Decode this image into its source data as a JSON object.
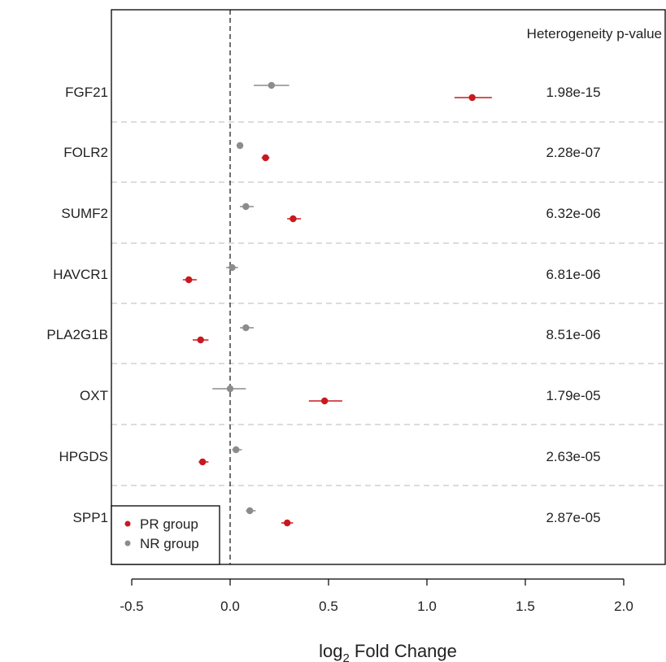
{
  "chart_data": {
    "type": "forest",
    "annotation_header": "Heterogeneity p-value",
    "xlabel_prefix": "log",
    "xlabel_subscript": "2",
    "xlabel_suffix": " Fold Change",
    "xlim": [
      -0.6,
      2.2
    ],
    "xticks": [
      -0.5,
      0.0,
      0.5,
      1.0,
      1.5,
      2.0
    ],
    "xtick_labels": [
      "-0.5",
      "0.0",
      "0.5",
      "1.0",
      "1.5",
      "2.0"
    ],
    "reference_line": 0,
    "genes": [
      "FGF21",
      "FOLR2",
      "SUMF2",
      "HAVCR1",
      "PLA2G1B",
      "OXT",
      "HPGDS",
      "SPP1"
    ],
    "p_values": [
      "1.98e-15",
      "2.28e-07",
      "6.32e-06",
      "6.81e-06",
      "8.51e-06",
      "1.79e-05",
      "2.63e-05",
      "2.87e-05"
    ],
    "series": [
      {
        "name": "PR group",
        "color": "#c8191e",
        "estimate": [
          1.23,
          0.18,
          0.32,
          -0.21,
          -0.15,
          0.48,
          -0.14,
          0.29
        ],
        "ci_low": [
          1.14,
          0.16,
          0.29,
          -0.24,
          -0.19,
          0.4,
          -0.16,
          0.26
        ],
        "ci_high": [
          1.33,
          0.2,
          0.36,
          -0.17,
          -0.11,
          0.57,
          -0.11,
          0.32
        ]
      },
      {
        "name": "NR group",
        "color": "#8c8c8c",
        "estimate": [
          0.21,
          0.05,
          0.08,
          0.01,
          0.08,
          0.0,
          0.03,
          0.1
        ],
        "ci_low": [
          0.12,
          0.04,
          0.05,
          -0.02,
          0.05,
          -0.09,
          0.01,
          0.08
        ],
        "ci_high": [
          0.3,
          0.06,
          0.12,
          0.04,
          0.12,
          0.08,
          0.06,
          0.13
        ]
      }
    ],
    "legend_position": "bottom-left"
  }
}
